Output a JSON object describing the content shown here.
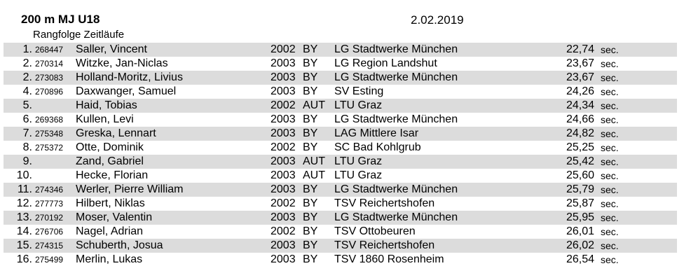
{
  "header": {
    "title": "200 m MJ U18",
    "date": "2.02.2019",
    "subtitle": "Rangfolge Zeitläufe"
  },
  "results": [
    {
      "rank": "1.",
      "bib": "268447",
      "name": "Saller, Vincent",
      "year": "2002",
      "nat": "BY",
      "club": "LG Stadtwerke München",
      "time": "22,74",
      "unit": "sec."
    },
    {
      "rank": "2.",
      "bib": "270314",
      "name": "Witzke, Jan-Niclas",
      "year": "2003",
      "nat": "BY",
      "club": "LG Region Landshut",
      "time": "23,67",
      "unit": "sec."
    },
    {
      "rank": "2.",
      "bib": "273083",
      "name": "Holland-Moritz, Livius",
      "year": "2003",
      "nat": "BY",
      "club": "LG Stadtwerke München",
      "time": "23,67",
      "unit": "sec."
    },
    {
      "rank": "4.",
      "bib": "270896",
      "name": "Daxwanger, Samuel",
      "year": "2003",
      "nat": "BY",
      "club": "SV Esting",
      "time": "24,26",
      "unit": "sec."
    },
    {
      "rank": "5.",
      "bib": "",
      "name": "Haid, Tobias",
      "year": "2002",
      "nat": "AUT",
      "club": "LTU Graz",
      "time": "24,34",
      "unit": "sec."
    },
    {
      "rank": "6.",
      "bib": "269368",
      "name": "Kullen, Levi",
      "year": "2003",
      "nat": "BY",
      "club": "LG Stadtwerke München",
      "time": "24,66",
      "unit": "sec."
    },
    {
      "rank": "7.",
      "bib": "275348",
      "name": "Greska, Lennart",
      "year": "2003",
      "nat": "BY",
      "club": "LAG Mittlere Isar",
      "time": "24,82",
      "unit": "sec."
    },
    {
      "rank": "8.",
      "bib": "275372",
      "name": "Otte, Dominik",
      "year": "2002",
      "nat": "BY",
      "club": "SC Bad Kohlgrub",
      "time": "25,25",
      "unit": "sec."
    },
    {
      "rank": "9.",
      "bib": "",
      "name": "Zand, Gabriel",
      "year": "2003",
      "nat": "AUT",
      "club": "LTU Graz",
      "time": "25,42",
      "unit": "sec."
    },
    {
      "rank": "10.",
      "bib": "",
      "name": "Hecke, Florian",
      "year": "2003",
      "nat": "AUT",
      "club": "LTU Graz",
      "time": "25,60",
      "unit": "sec."
    },
    {
      "rank": "11.",
      "bib": "274346",
      "name": "Werler, Pierre William",
      "year": "2003",
      "nat": "BY",
      "club": "LG Stadtwerke München",
      "time": "25,79",
      "unit": "sec."
    },
    {
      "rank": "12.",
      "bib": "277773",
      "name": "Hilbert, Niklas",
      "year": "2002",
      "nat": "BY",
      "club": "TSV Reichertshofen",
      "time": "25,87",
      "unit": "sec."
    },
    {
      "rank": "13.",
      "bib": "270192",
      "name": "Moser, Valentin",
      "year": "2003",
      "nat": "BY",
      "club": "LG Stadtwerke München",
      "time": "25,95",
      "unit": "sec."
    },
    {
      "rank": "14.",
      "bib": "276706",
      "name": "Nagel, Adrian",
      "year": "2002",
      "nat": "BY",
      "club": "TSV Ottobeuren",
      "time": "26,01",
      "unit": "sec."
    },
    {
      "rank": "15.",
      "bib": "274315",
      "name": "Schuberth, Josua",
      "year": "2003",
      "nat": "BY",
      "club": "TSV Reichertshofen",
      "time": "26,02",
      "unit": "sec."
    },
    {
      "rank": "16.",
      "bib": "275499",
      "name": "Merlin, Lukas",
      "year": "2003",
      "nat": "BY",
      "club": "TSV 1860 Rosenheim",
      "time": "26,54",
      "unit": "sec."
    }
  ]
}
